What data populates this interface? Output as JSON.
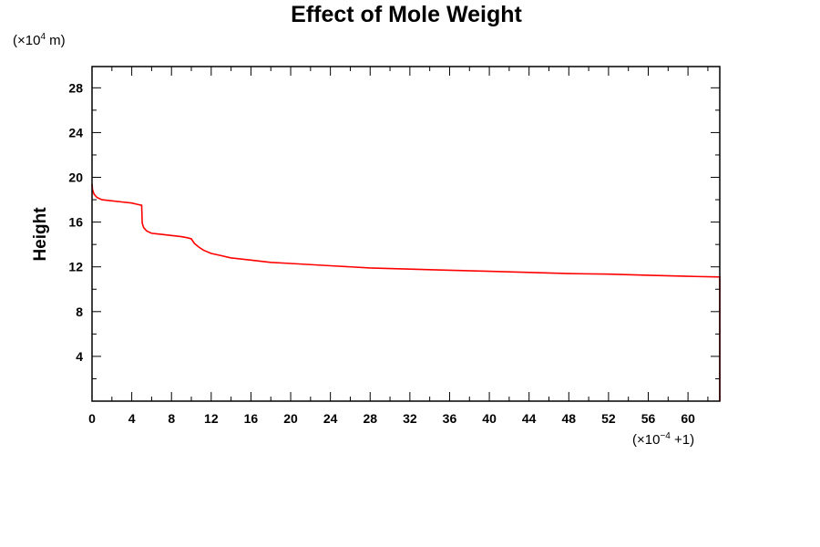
{
  "chart_data": {
    "type": "line",
    "title": "Effect of Mole Weight",
    "xlabel": "",
    "ylabel": "Height",
    "y_multiplier": {
      "prefix": "(×10",
      "exponent": "4",
      "suffix": " m)"
    },
    "x_multiplier": {
      "prefix": "(×10",
      "exponent": "−4",
      "suffix": " +1)"
    },
    "xlim": [
      0,
      63.2
    ],
    "ylim": [
      0,
      29.9
    ],
    "x_ticks_major": [
      0,
      4,
      8,
      12,
      16,
      20,
      24,
      28,
      32,
      36,
      40,
      44,
      48,
      52,
      56,
      60
    ],
    "x_tick_labels": [
      "0",
      "4",
      "8",
      "12",
      "16",
      "20",
      "24",
      "28",
      "32",
      "36",
      "40",
      "44",
      "48",
      "52",
      "56",
      "60"
    ],
    "x_ticks_minor": [
      2,
      6,
      10,
      14,
      18,
      22,
      26,
      30,
      34,
      38,
      42,
      46,
      50,
      54,
      58,
      62
    ],
    "y_ticks_major": [
      4,
      8,
      12,
      16,
      20,
      24,
      28
    ],
    "y_tick_labels": [
      "4",
      "8",
      "12",
      "16",
      "20",
      "24",
      "28"
    ],
    "y_ticks_minor": [
      2,
      6,
      10,
      14,
      18,
      22,
      26
    ],
    "grid": false,
    "legend": "none",
    "series": [
      {
        "name": "Height",
        "color": "#ff0000",
        "x": [
          0,
          0.05,
          0.2,
          0.5,
          1,
          2,
          3,
          4,
          4.5,
          5.0,
          5.05,
          5.2,
          5.5,
          6,
          7,
          8,
          9,
          9.6,
          10.0,
          10.3,
          10.7,
          11.2,
          12,
          13,
          14,
          16,
          18,
          20,
          24,
          28,
          32,
          36,
          40,
          44,
          48,
          52,
          56,
          60,
          63.2,
          63.2
        ],
        "y": [
          19.4,
          18.9,
          18.5,
          18.2,
          18.0,
          17.9,
          17.8,
          17.7,
          17.6,
          17.5,
          15.9,
          15.5,
          15.2,
          15.0,
          14.9,
          14.8,
          14.7,
          14.6,
          14.5,
          14.1,
          13.8,
          13.5,
          13.2,
          13.0,
          12.8,
          12.6,
          12.4,
          12.3,
          12.1,
          11.9,
          11.8,
          11.7,
          11.6,
          11.5,
          11.4,
          11.35,
          11.25,
          11.15,
          11.1,
          0
        ]
      }
    ]
  }
}
